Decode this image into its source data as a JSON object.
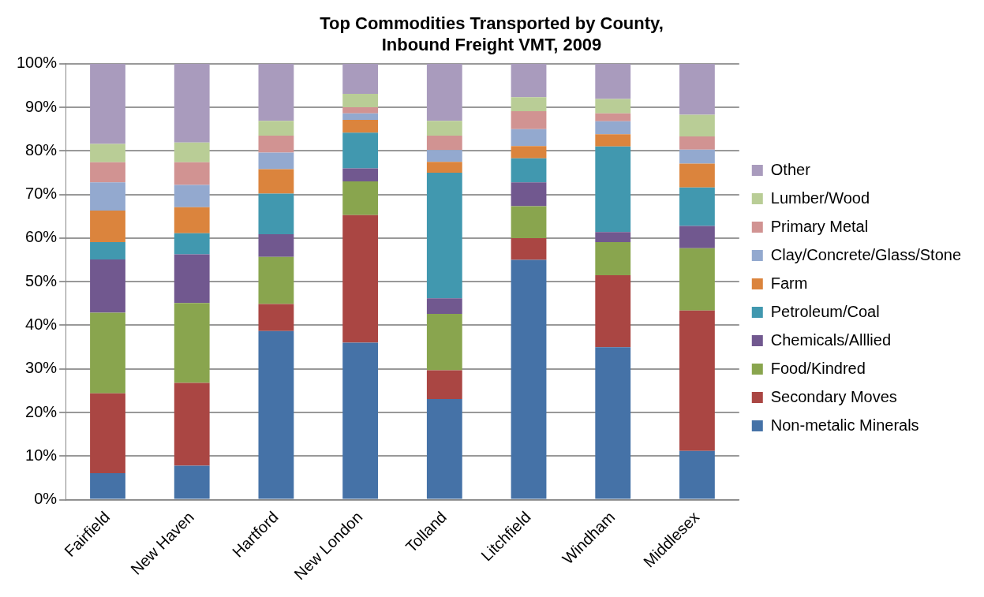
{
  "chart_data": {
    "type": "bar",
    "stacked": true,
    "title": "Top Commodities Transported by County,\nInbound Freight VMT, 2009",
    "categories": [
      "Fairfield",
      "New Haven",
      "Hartford",
      "New London",
      "Tolland",
      "Litchfield",
      "Windham",
      "Middlesex"
    ],
    "ylim": [
      0,
      100
    ],
    "yticks": [
      {
        "value": 0,
        "label": "0%"
      },
      {
        "value": 10,
        "label": "10%"
      },
      {
        "value": 20,
        "label": "20%"
      },
      {
        "value": 30,
        "label": "30%"
      },
      {
        "value": 40,
        "label": "40%"
      },
      {
        "value": 50,
        "label": "50%"
      },
      {
        "value": 60,
        "label": "60%"
      },
      {
        "value": 70,
        "label": "70%"
      },
      {
        "value": 80,
        "label": "80%"
      },
      {
        "value": 90,
        "label": "90%"
      },
      {
        "value": 100,
        "label": "100%"
      }
    ],
    "grid": "y",
    "legend": "right",
    "series": [
      {
        "name": "Non-metalic Minerals",
        "color": "#4572a7",
        "values": [
          6.1,
          7.8,
          38.7,
          36.0,
          23.1,
          55.0,
          35.0,
          11.2
        ]
      },
      {
        "name": "Secondary Moves",
        "color": "#aa4643",
        "values": [
          18.3,
          19.0,
          6.2,
          29.3,
          6.6,
          5.0,
          16.5,
          32.2
        ]
      },
      {
        "name": "Food/Kindred",
        "color": "#89a54e",
        "values": [
          18.5,
          18.3,
          10.8,
          7.7,
          12.9,
          7.3,
          7.6,
          14.3
        ]
      },
      {
        "name": "Chemicals/Alllied",
        "color": "#71588f",
        "values": [
          12.2,
          11.2,
          5.2,
          3.0,
          3.6,
          5.5,
          2.3,
          5.1
        ]
      },
      {
        "name": "Petroleum/Coal",
        "color": "#4198af",
        "values": [
          4.0,
          4.8,
          9.3,
          8.2,
          28.8,
          5.5,
          19.6,
          8.8
        ]
      },
      {
        "name": "Farm",
        "color": "#db843d",
        "values": [
          7.2,
          6.0,
          5.6,
          2.9,
          2.5,
          2.8,
          2.8,
          5.5
        ]
      },
      {
        "name": "Clay/Concrete/Glass/Stone",
        "color": "#93a9cf",
        "values": [
          6.5,
          5.1,
          3.8,
          1.5,
          2.7,
          3.9,
          3.0,
          3.2
        ]
      },
      {
        "name": "Primary Metal",
        "color": "#d19392",
        "values": [
          4.6,
          5.2,
          3.9,
          1.4,
          3.3,
          4.1,
          1.8,
          3.0
        ]
      },
      {
        "name": "Lumber/Wood",
        "color": "#b9cd96",
        "values": [
          4.2,
          4.5,
          3.4,
          3.1,
          3.4,
          3.2,
          3.3,
          5.0
        ]
      },
      {
        "name": "Other",
        "color": "#a99bbd",
        "values": [
          18.4,
          18.1,
          13.1,
          6.9,
          13.1,
          7.7,
          8.1,
          11.7
        ]
      }
    ]
  }
}
